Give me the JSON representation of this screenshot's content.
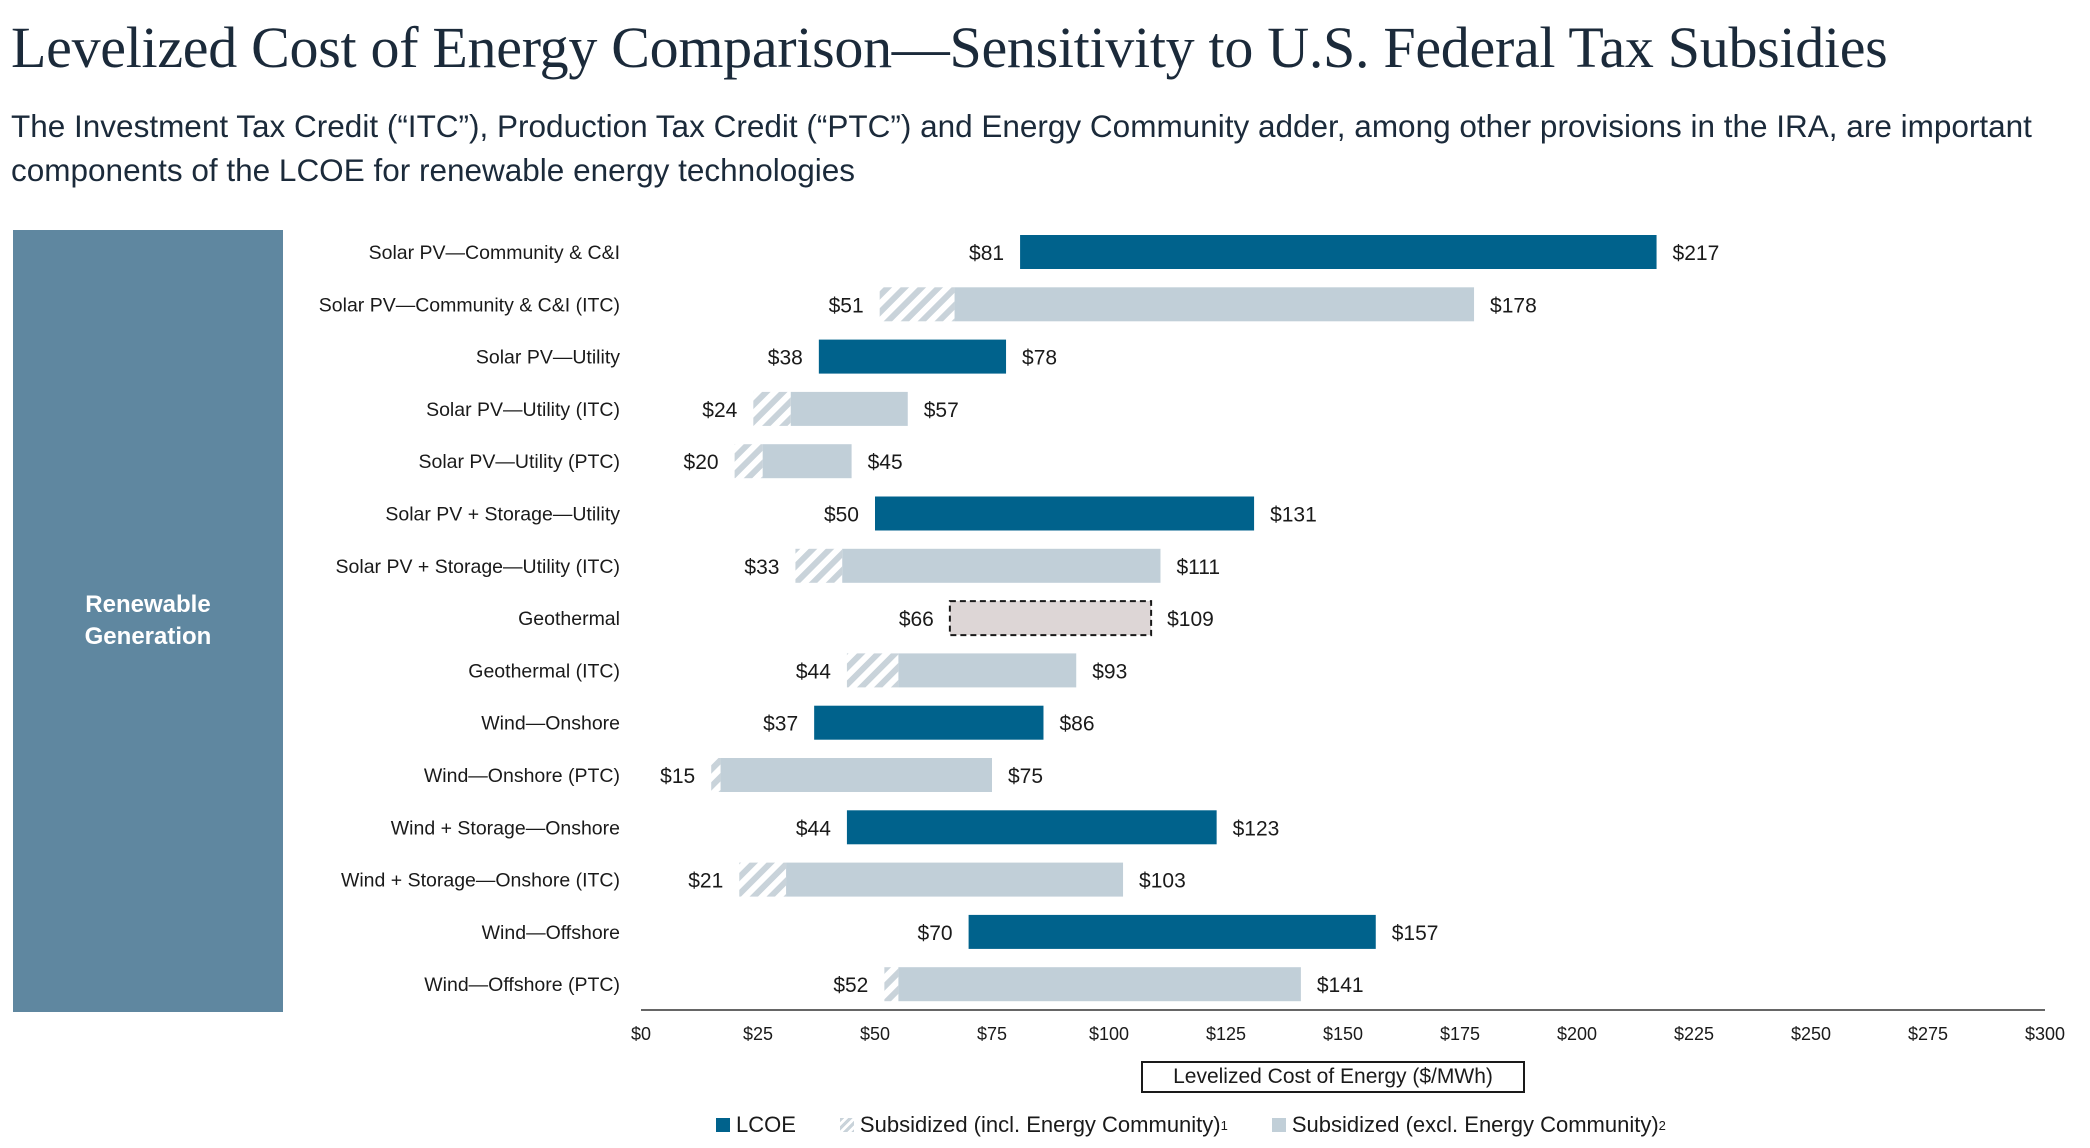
{
  "title": "Levelized Cost of Energy Comparison—Sensitivity to U.S. Federal Tax Subsidies",
  "subtitle": "The Investment Tax Credit (“ITC”), Production Tax Credit (“PTC”) and Energy Community adder, among other provisions in the IRA, are important components of the LCOE for renewable energy technologies",
  "side_label": "Renewable Generation",
  "legend": {
    "lcoe": "LCOE",
    "subsidized_incl": "Subsidized (incl. Energy Community)",
    "subsidized_incl_note": "1",
    "subsidized_excl": "Subsidized (excl. Energy Community)",
    "subsidized_excl_note": "2"
  },
  "colors": {
    "lcoe": "#00628c",
    "subsidized": "#c1cfd8",
    "hatch": "#c9d3da",
    "geothermal": "#ddd6d6",
    "side_panel": "#5f87a0"
  },
  "chart_data": {
    "type": "bar",
    "orientation": "horizontal-floating-range",
    "title": "Levelized Cost of Energy Comparison—Sensitivity to U.S. Federal Tax Subsidies",
    "xlabel": "Levelized Cost of Energy ($/MWh)",
    "xlim": [
      0,
      300
    ],
    "xticks": [
      0,
      25,
      50,
      75,
      100,
      125,
      150,
      175,
      200,
      225,
      250,
      275,
      300
    ],
    "xtick_labels": [
      "$0",
      "$25",
      "$50",
      "$75",
      "$100",
      "$125",
      "$150",
      "$175",
      "$200",
      "$225",
      "$250",
      "$275",
      "$300"
    ],
    "rows": [
      {
        "label": "Solar PV—Community & C&I",
        "kind": "lcoe",
        "low": 81,
        "high": 217,
        "low_label": "$81",
        "high_label": "$217"
      },
      {
        "label": "Solar PV—Community & C&I (ITC)",
        "kind": "subsidized",
        "low": 51,
        "hatch_end": 67,
        "high": 178,
        "low_label": "$51",
        "high_label": "$178"
      },
      {
        "label": "Solar PV—Utility",
        "kind": "lcoe",
        "low": 38,
        "high": 78,
        "low_label": "$38",
        "high_label": "$78"
      },
      {
        "label": "Solar PV—Utility (ITC)",
        "kind": "subsidized",
        "low": 24,
        "hatch_end": 32,
        "high": 57,
        "low_label": "$24",
        "high_label": "$57"
      },
      {
        "label": "Solar PV—Utility (PTC)",
        "kind": "subsidized",
        "low": 20,
        "hatch_end": 26,
        "high": 45,
        "low_label": "$20",
        "high_label": "$45"
      },
      {
        "label": "Solar PV + Storage—Utility",
        "kind": "lcoe",
        "low": 50,
        "high": 131,
        "low_label": "$50",
        "high_label": "$131"
      },
      {
        "label": "Solar PV + Storage—Utility (ITC)",
        "kind": "subsidized",
        "low": 33,
        "hatch_end": 43,
        "high": 111,
        "low_label": "$33",
        "high_label": "$111"
      },
      {
        "label": "Geothermal",
        "kind": "dashed",
        "low": 66,
        "high": 109,
        "low_label": "$66",
        "high_label": "$109"
      },
      {
        "label": "Geothermal (ITC)",
        "kind": "subsidized",
        "low": 44,
        "hatch_end": 55,
        "high": 93,
        "low_label": "$44",
        "high_label": "$93"
      },
      {
        "label": "Wind—Onshore",
        "kind": "lcoe",
        "low": 37,
        "high": 86,
        "low_label": "$37",
        "high_label": "$86"
      },
      {
        "label": "Wind—Onshore (PTC)",
        "kind": "subsidized",
        "low": 15,
        "hatch_end": 17,
        "high": 75,
        "low_label": "$15",
        "high_label": "$75"
      },
      {
        "label": "Wind + Storage—Onshore",
        "kind": "lcoe",
        "low": 44,
        "high": 123,
        "low_label": "$44",
        "high_label": "$123"
      },
      {
        "label": "Wind + Storage—Onshore (ITC)",
        "kind": "subsidized",
        "low": 21,
        "hatch_end": 31,
        "high": 103,
        "low_label": "$21",
        "high_label": "$103"
      },
      {
        "label": "Wind—Offshore",
        "kind": "lcoe",
        "low": 70,
        "high": 157,
        "low_label": "$70",
        "high_label": "$157"
      },
      {
        "label": "Wind—Offshore (PTC)",
        "kind": "subsidized",
        "low": 52,
        "hatch_end": 55,
        "high": 141,
        "low_label": "$52",
        "high_label": "$141"
      }
    ]
  }
}
